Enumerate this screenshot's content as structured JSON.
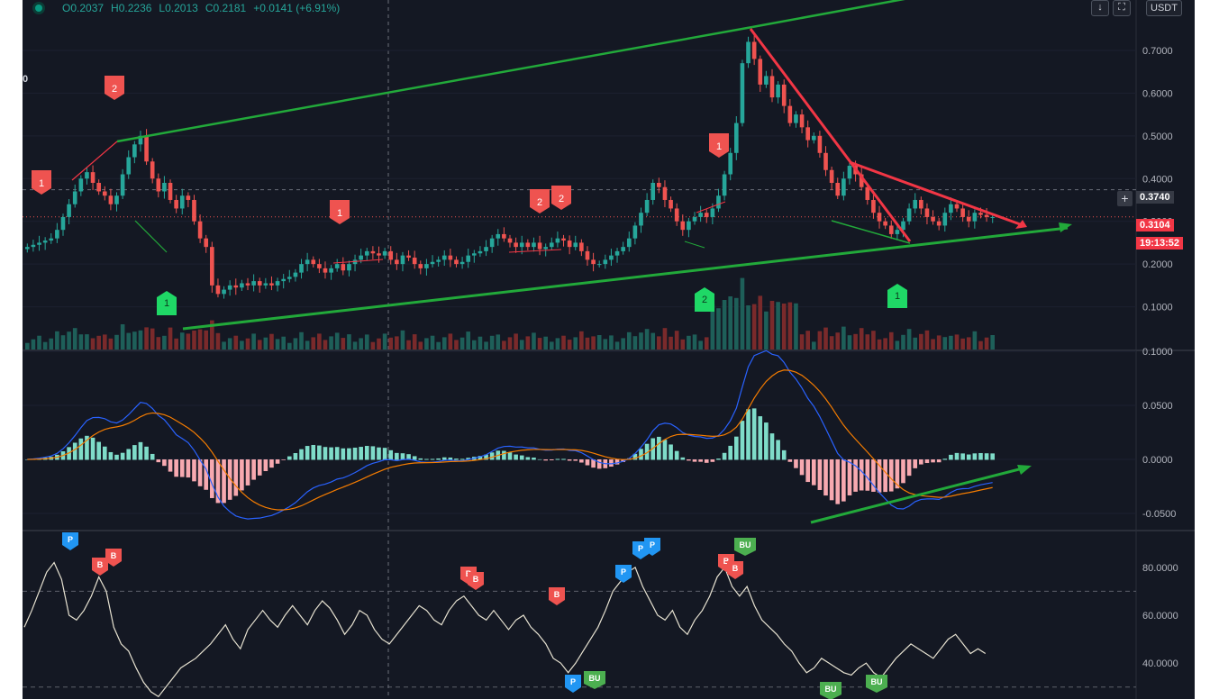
{
  "header": {
    "open": "O0.2037",
    "high": "H0.2236",
    "low": "L0.2013",
    "close": "C0.2181",
    "change": "+0.0141 (+6.91%)"
  },
  "edge_label": "0",
  "currency_button": "USDT",
  "toolbar": {
    "download_icon": "download-icon",
    "fullscreen_icon": "fullscreen-icon",
    "download_glyph": "↓",
    "fullscreen_glyph": "⛶"
  },
  "price_labels": {
    "crosshair": "0.3740",
    "last_price": "0.3104",
    "countdown": "19:13:52",
    "crosshair_plus": "+"
  },
  "colors": {
    "background": "#141823",
    "up": "#26a69a",
    "down": "#ef5350",
    "trend_green": "#22a93a",
    "trend_red": "#f23645",
    "macd_line": "#2962ff",
    "signal_line": "#f57c00",
    "rsi_line": "#e7e2d1",
    "marker_blue": "#2196f3",
    "marker_green": "#4caf50"
  },
  "chart_data": [
    {
      "type": "candlestick",
      "title": "",
      "y_ticks": [
        "0.1000",
        "0.2000",
        "0.3000",
        "0.4000",
        "0.5000",
        "0.6000",
        "0.7000"
      ],
      "ylim": [
        0.0,
        0.78
      ],
      "grid": true,
      "close": [
        0.24,
        0.245,
        0.25,
        0.255,
        0.26,
        0.28,
        0.31,
        0.34,
        0.37,
        0.4,
        0.415,
        0.39,
        0.37,
        0.36,
        0.34,
        0.36,
        0.41,
        0.45,
        0.48,
        0.5,
        0.44,
        0.4,
        0.37,
        0.39,
        0.35,
        0.33,
        0.36,
        0.35,
        0.3,
        0.26,
        0.24,
        0.15,
        0.13,
        0.14,
        0.15,
        0.145,
        0.155,
        0.15,
        0.16,
        0.15,
        0.155,
        0.15,
        0.16,
        0.165,
        0.17,
        0.18,
        0.2,
        0.21,
        0.2,
        0.19,
        0.18,
        0.19,
        0.2,
        0.185,
        0.2,
        0.21,
        0.22,
        0.23,
        0.225,
        0.22,
        0.23,
        0.21,
        0.2,
        0.22,
        0.215,
        0.2,
        0.19,
        0.2,
        0.205,
        0.21,
        0.22,
        0.21,
        0.2,
        0.205,
        0.22,
        0.225,
        0.23,
        0.24,
        0.26,
        0.27,
        0.26,
        0.25,
        0.24,
        0.25,
        0.24,
        0.25,
        0.235,
        0.24,
        0.25,
        0.26,
        0.255,
        0.24,
        0.25,
        0.23,
        0.21,
        0.2,
        0.2,
        0.21,
        0.22,
        0.23,
        0.24,
        0.26,
        0.29,
        0.32,
        0.35,
        0.39,
        0.38,
        0.35,
        0.33,
        0.3,
        0.28,
        0.3,
        0.31,
        0.32,
        0.31,
        0.33,
        0.36,
        0.41,
        0.46,
        0.53,
        0.67,
        0.72,
        0.68,
        0.62,
        0.64,
        0.59,
        0.62,
        0.57,
        0.53,
        0.55,
        0.52,
        0.49,
        0.5,
        0.46,
        0.42,
        0.39,
        0.36,
        0.4,
        0.43,
        0.41,
        0.38,
        0.35,
        0.32,
        0.3,
        0.29,
        0.27,
        0.28,
        0.3,
        0.33,
        0.35,
        0.33,
        0.31,
        0.3,
        0.29,
        0.32,
        0.34,
        0.33,
        0.31,
        0.3,
        0.32,
        0.315,
        0.31,
        0.31
      ],
      "volume_max_label": "",
      "annotations": [
        {
          "text": "1",
          "color": "red",
          "kind": "sell"
        },
        {
          "text": "2",
          "color": "red",
          "kind": "sell"
        },
        {
          "text": "1",
          "color": "green",
          "kind": "buy"
        },
        {
          "text": "1",
          "color": "red",
          "kind": "sell"
        },
        {
          "text": "2",
          "color": "red",
          "kind": "sell"
        },
        {
          "text": "2",
          "color": "red",
          "kind": "sell"
        },
        {
          "text": "1",
          "color": "red",
          "kind": "sell"
        },
        {
          "text": "2",
          "color": "green",
          "kind": "buy"
        },
        {
          "text": "1",
          "color": "green",
          "kind": "buy"
        }
      ]
    },
    {
      "type": "macd",
      "y_ticks": [
        "0.1000",
        "0.0500",
        "0.0000",
        "-0.0500"
      ],
      "ylim": [
        -0.065,
        0.1
      ],
      "grid": true
    },
    {
      "type": "line",
      "y_ticks": [
        "80.0000",
        "60.0000",
        "40.0000"
      ],
      "ylim": [
        25,
        95
      ],
      "bands": [
        70,
        30
      ],
      "values": [
        55,
        62,
        70,
        78,
        82,
        75,
        60,
        58,
        62,
        68,
        76,
        70,
        55,
        48,
        45,
        38,
        32,
        28,
        26,
        30,
        34,
        38,
        40,
        42,
        45,
        48,
        52,
        56,
        50,
        46,
        54,
        58,
        62,
        58,
        55,
        60,
        64,
        60,
        56,
        62,
        66,
        63,
        58,
        52,
        56,
        62,
        60,
        54,
        50,
        48,
        52,
        56,
        60,
        64,
        62,
        58,
        56,
        62,
        66,
        68,
        64,
        60,
        58,
        62,
        58,
        54,
        58,
        60,
        55,
        52,
        48,
        42,
        40,
        36,
        40,
        45,
        50,
        55,
        62,
        70,
        74,
        78,
        80,
        72,
        66,
        60,
        58,
        62,
        55,
        52,
        58,
        62,
        68,
        76,
        80,
        72,
        68,
        72,
        64,
        58,
        55,
        52,
        48,
        45,
        40,
        36,
        38,
        42,
        40,
        38,
        36,
        35,
        38,
        40,
        36,
        34,
        38,
        42,
        45,
        48,
        46,
        44,
        42,
        46,
        50,
        52,
        48,
        44,
        46,
        44
      ],
      "markers": [
        {
          "text": "P",
          "color": "blue"
        },
        {
          "text": "B",
          "color": "red"
        },
        {
          "text": "B",
          "color": "red"
        },
        {
          "text": "B",
          "color": "red"
        },
        {
          "text": "B",
          "color": "red"
        },
        {
          "text": "P",
          "color": "blue"
        },
        {
          "text": "BU",
          "color": "green"
        },
        {
          "text": "P",
          "color": "blue"
        },
        {
          "text": "P",
          "color": "blue"
        },
        {
          "text": "P",
          "color": "blue"
        },
        {
          "text": "B",
          "color": "red"
        },
        {
          "text": "B",
          "color": "red"
        },
        {
          "text": "B",
          "color": "red"
        },
        {
          "text": "BU",
          "color": "green"
        },
        {
          "text": "BU",
          "color": "green"
        },
        {
          "text": "BU",
          "color": "green"
        }
      ]
    }
  ]
}
